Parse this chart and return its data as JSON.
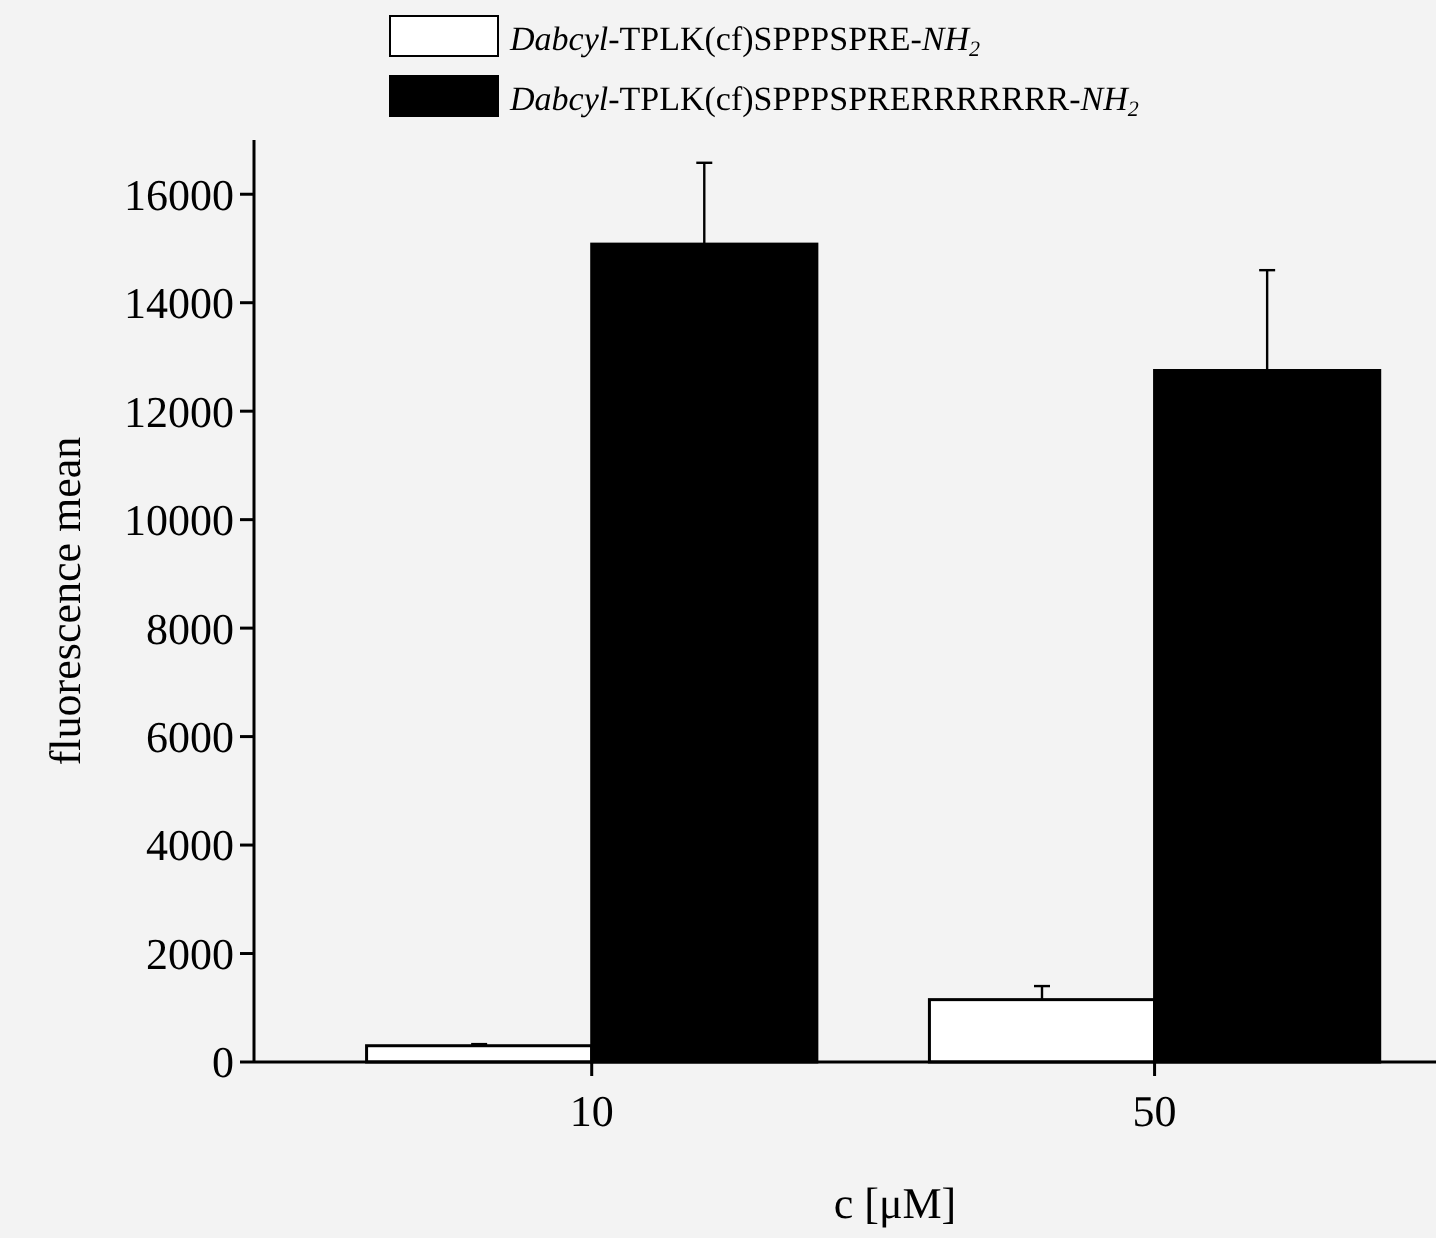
{
  "chart_data": {
    "type": "bar",
    "xlabel": "c [μM]",
    "ylabel": "fluorescence mean",
    "categories": [
      "10",
      "50"
    ],
    "series": [
      {
        "name": "Dabcyl-TPLK(cf)SPPPSPRE-NH$_{2}$",
        "color": "#ffffff",
        "values": [
          300,
          1150
        ],
        "errors": [
          30,
          250
        ]
      },
      {
        "name": "Dabcyl-TPLK(cf)SPPPSPRERRRRRRR-NH$_{2}$",
        "color": "#000000",
        "values": [
          15080,
          12750
        ],
        "errors": [
          1500,
          1850
        ]
      }
    ],
    "ylim": [
      0,
      17000
    ],
    "yticks": [
      0,
      2000,
      4000,
      6000,
      8000,
      10000,
      12000,
      14000,
      16000
    ],
    "legend": "top",
    "grid": false
  }
}
